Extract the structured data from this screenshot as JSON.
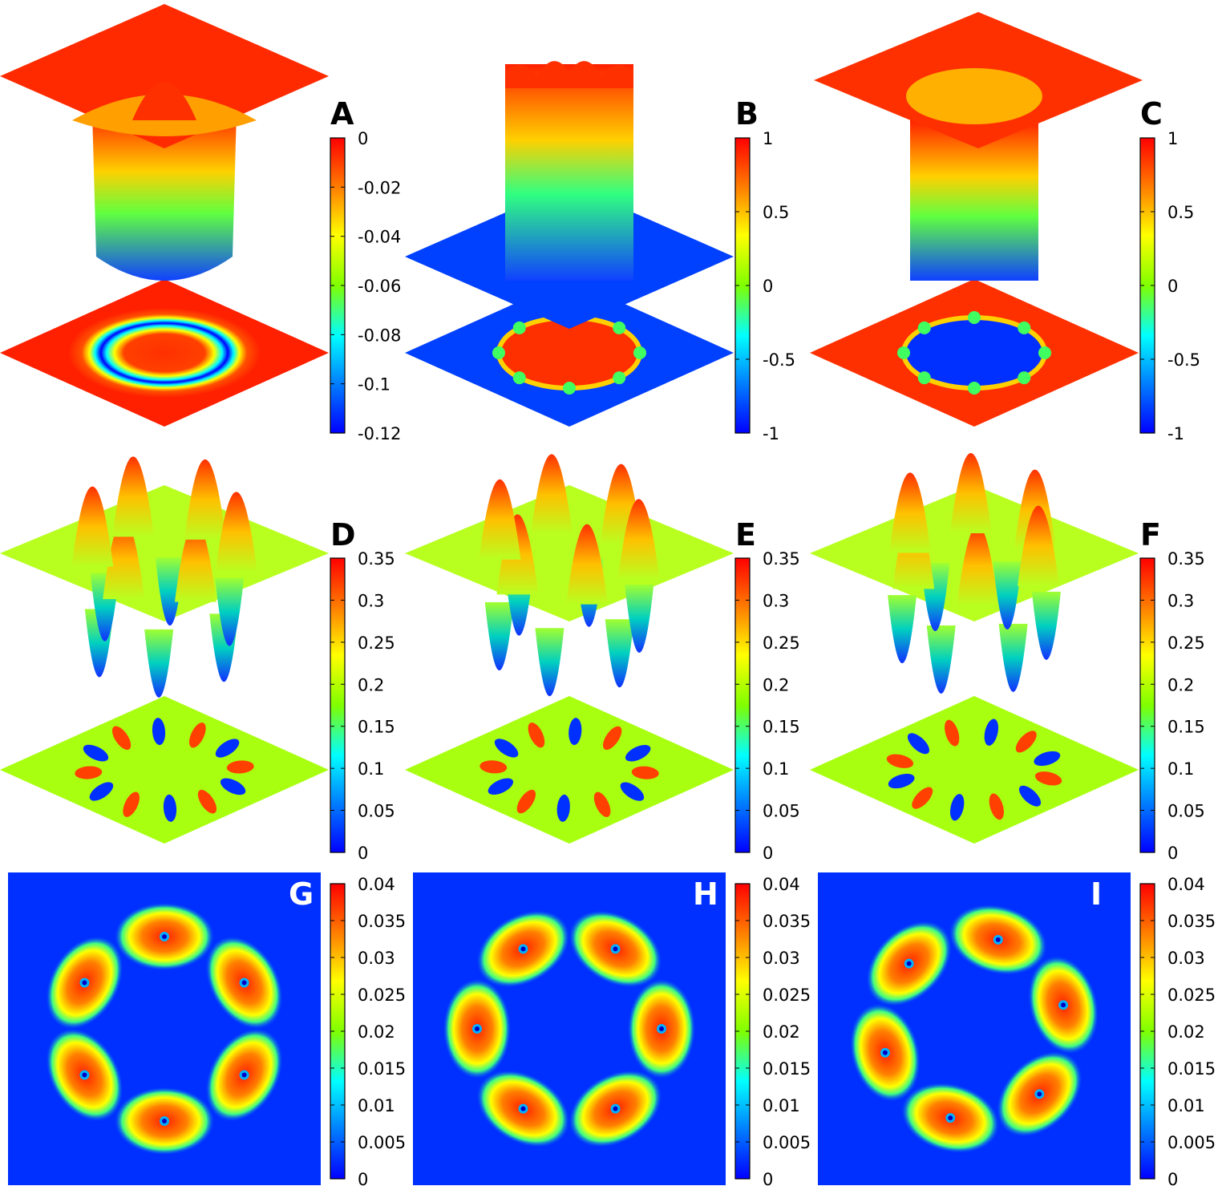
{
  "colors": {
    "jet": [
      "#0000ff",
      "#0080ff",
      "#00ffff",
      "#80ff00",
      "#ffff00",
      "#ff8000",
      "#ff0000"
    ],
    "background": "#ffffff"
  },
  "chart_data": [
    {
      "panel": "A",
      "type": "surface3d",
      "surface": "radial-well",
      "projection": "ring",
      "colorbar": {
        "range": [
          -0.12,
          0
        ],
        "ticks": [
          "0",
          "-0.02",
          "-0.04",
          "-0.06",
          "-0.08",
          "-0.1",
          "-0.12"
        ]
      }
    },
    {
      "panel": "B",
      "type": "surface3d",
      "surface": "raised-cylinder-with-notches",
      "projection": "disk",
      "lobes": 8,
      "colorbar": {
        "range": [
          -1,
          1
        ],
        "ticks": [
          "1",
          "0.5",
          "0",
          "-0.5",
          "-1"
        ]
      }
    },
    {
      "panel": "C",
      "type": "surface3d",
      "surface": "sunken-cylinder-with-notches",
      "projection": "disk",
      "lobes": 8,
      "colorbar": {
        "range": [
          -1,
          1
        ],
        "ticks": [
          "1",
          "0.5",
          "0",
          "-0.5",
          "-1"
        ]
      }
    },
    {
      "panel": "D",
      "type": "surface3d",
      "surface": "alternating-peaks",
      "projection": "dipole-ring",
      "lobes": 12,
      "colorbar": {
        "range": [
          0,
          0.35
        ],
        "ticks": [
          "0.35",
          "0.3",
          "0.25",
          "0.2",
          "0.15",
          "0.1",
          "0.05",
          "0"
        ]
      }
    },
    {
      "panel": "E",
      "type": "surface3d",
      "surface": "alternating-peaks",
      "projection": "dipole-ring",
      "lobes": 12,
      "colorbar": {
        "range": [
          0,
          0.35
        ],
        "ticks": [
          "0.35",
          "0.3",
          "0.25",
          "0.2",
          "0.15",
          "0.1",
          "0.05",
          "0"
        ]
      }
    },
    {
      "panel": "F",
      "type": "surface3d",
      "surface": "alternating-peaks",
      "projection": "dipole-ring",
      "lobes": 12,
      "colorbar": {
        "range": [
          0,
          0.35
        ],
        "ticks": [
          "0.35",
          "0.3",
          "0.25",
          "0.2",
          "0.15",
          "0.1",
          "0.05",
          "0"
        ]
      }
    },
    {
      "panel": "G",
      "type": "heatmap",
      "lobes": 6,
      "rotation_deg": 0,
      "colorbar": {
        "range": [
          0,
          0.04
        ],
        "ticks": [
          "0.04",
          "0.035",
          "0.03",
          "0.025",
          "0.02",
          "0.015",
          "0.01",
          "0.005",
          "0"
        ]
      }
    },
    {
      "panel": "H",
      "type": "heatmap",
      "lobes": 6,
      "rotation_deg": 30,
      "colorbar": {
        "range": [
          0,
          0.04
        ],
        "ticks": [
          "0.04",
          "0.035",
          "0.03",
          "0.025",
          "0.02",
          "0.015",
          "0.01",
          "0.005",
          "0"
        ]
      }
    },
    {
      "panel": "I",
      "type": "heatmap",
      "lobes": 6,
      "rotation_deg": 15,
      "colorbar": {
        "range": [
          0,
          0.04
        ],
        "ticks": [
          "0.04",
          "0.035",
          "0.03",
          "0.025",
          "0.02",
          "0.015",
          "0.01",
          "0.005",
          "0"
        ]
      }
    }
  ]
}
